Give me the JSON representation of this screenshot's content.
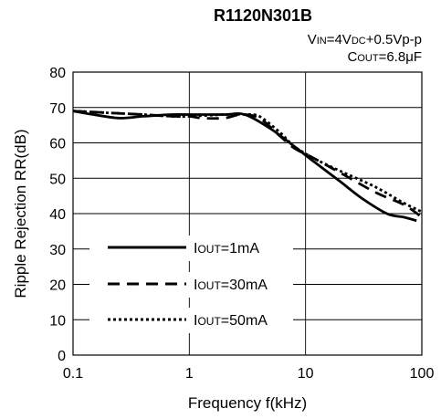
{
  "chart_data": {
    "type": "line",
    "title": "R1120N301B",
    "conditions": [
      {
        "p1": "V",
        "s1": "IN",
        "p2": "=4V",
        "s2": "DC",
        "p3": "+0.5Vp-p"
      },
      {
        "p1": "C",
        "s1": "OUT",
        "p2": "=6.8",
        "s2": "",
        "p3": "μF"
      }
    ],
    "xlabel": "Frequency f(kHz)",
    "ylabel": "Ripple Rejection RR(dB)",
    "x_scale": "log",
    "xlim": [
      0.1,
      100
    ],
    "ylim": [
      0,
      80
    ],
    "x_ticks": [
      {
        "value": 0.1,
        "label": "0.1"
      },
      {
        "value": 1,
        "label": "1"
      },
      {
        "value": 10,
        "label": "10"
      },
      {
        "value": 100,
        "label": "100"
      }
    ],
    "y_ticks": [
      0,
      10,
      20,
      30,
      40,
      50,
      60,
      70,
      80
    ],
    "grid": true,
    "legend_position": "lower-left",
    "series": [
      {
        "name_prefix": "I",
        "name_sub": "OUT",
        "name_suffix": "=1mA",
        "style": "solid",
        "x": [
          0.1,
          0.15,
          0.25,
          0.4,
          0.7,
          1,
          2,
          3,
          5,
          8,
          12,
          20,
          30,
          50,
          70,
          90
        ],
        "y": [
          69,
          68,
          67,
          67.5,
          68,
          68,
          68,
          68,
          64,
          59,
          54.5,
          49,
          44.5,
          40,
          39,
          38
        ]
      },
      {
        "name_prefix": "I",
        "name_sub": "OUT",
        "name_suffix": "=30mA",
        "style": "dashed",
        "x": [
          0.1,
          0.2,
          0.4,
          0.7,
          1,
          1.3,
          2,
          2.8,
          4,
          6,
          8,
          12,
          20,
          40,
          70,
          100
        ],
        "y": [
          69,
          68.5,
          68,
          67.5,
          67.5,
          67,
          67,
          68,
          67,
          62,
          58.5,
          55.5,
          51.5,
          46,
          42.5,
          39
        ]
      },
      {
        "name_prefix": "I",
        "name_sub": "OUT",
        "name_suffix": "=50mA",
        "style": "dotted",
        "x": [
          0.1,
          0.2,
          0.4,
          0.7,
          1,
          2,
          3,
          4,
          6,
          8,
          12,
          20,
          40,
          70,
          100
        ],
        "y": [
          69,
          68.5,
          68,
          67.5,
          67.5,
          68,
          68,
          67.5,
          63,
          59,
          55.5,
          52,
          47.5,
          43,
          40.5
        ]
      }
    ]
  }
}
